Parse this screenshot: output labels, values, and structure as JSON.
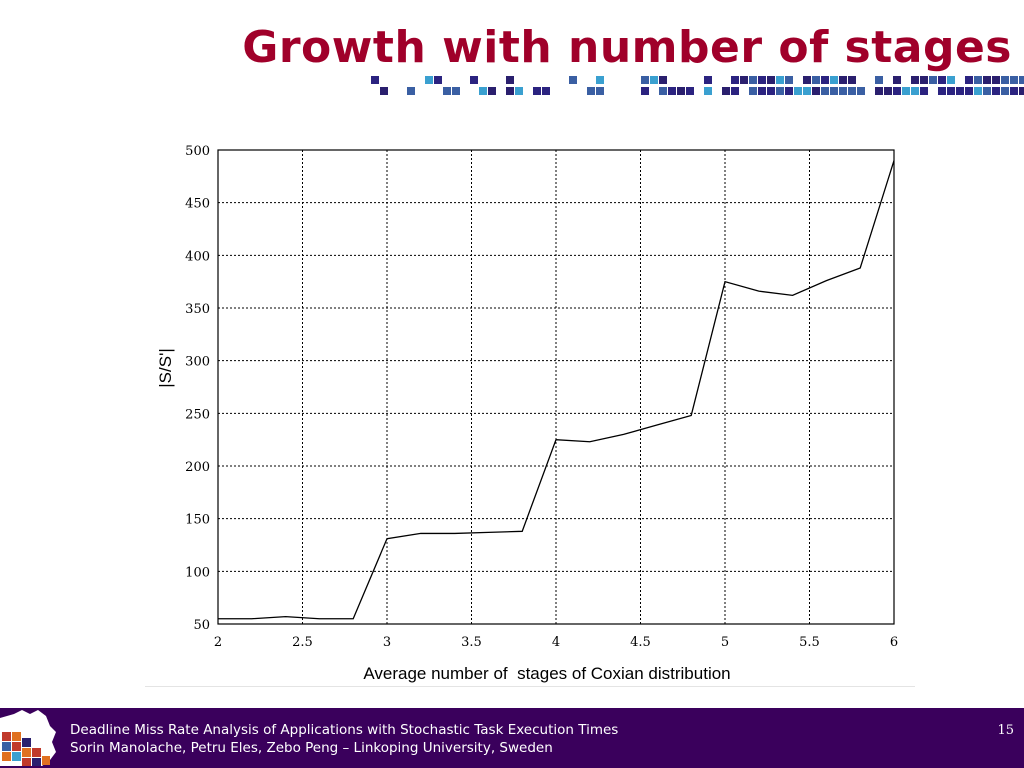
{
  "slide": {
    "title": "Growth with number of stages",
    "page_number": "15"
  },
  "footer": {
    "line1": "Deadline Miss Rate Analysis of Applications with Stochastic Task Execution Times",
    "line2": "Sorin Manolache, Petru Eles, Zebo Peng – Linkoping University, Sweden"
  },
  "colors": {
    "title": "#a0002a",
    "footer_bg": "#3a005c",
    "deco_navy": "#2b2380",
    "deco_blue": "#3a5fa3",
    "deco_sky": "#3aa0d0",
    "deco_indigo": "#2a1f6e",
    "logo_red": "#c0392b",
    "logo_orange": "#e07020"
  },
  "chart_data": {
    "type": "line",
    "title": "",
    "xlabel": "Average number of  stages of Coxian distribution",
    "ylabel": "|S/S'|",
    "xlim": [
      2,
      6
    ],
    "ylim": [
      50,
      500
    ],
    "xticks": [
      "2",
      "2.5",
      "3",
      "3.5",
      "4",
      "4.5",
      "5",
      "5.5",
      "6"
    ],
    "yticks": [
      "50",
      "100",
      "150",
      "200",
      "250",
      "300",
      "350",
      "400",
      "450",
      "500"
    ],
    "grid": true,
    "series": [
      {
        "x": [
          2.0,
          2.2,
          2.4,
          2.6,
          2.8,
          3.0,
          3.2,
          3.4,
          3.6,
          3.8,
          4.0,
          4.2,
          4.4,
          4.6,
          4.8,
          5.0,
          5.2,
          5.4,
          5.6,
          5.8,
          6.0
        ],
        "y": [
          55,
          55,
          57,
          55,
          55,
          131,
          136,
          136,
          137,
          138,
          225,
          223,
          230,
          239,
          248,
          375,
          366,
          362,
          376,
          388,
          490
        ]
      }
    ]
  }
}
